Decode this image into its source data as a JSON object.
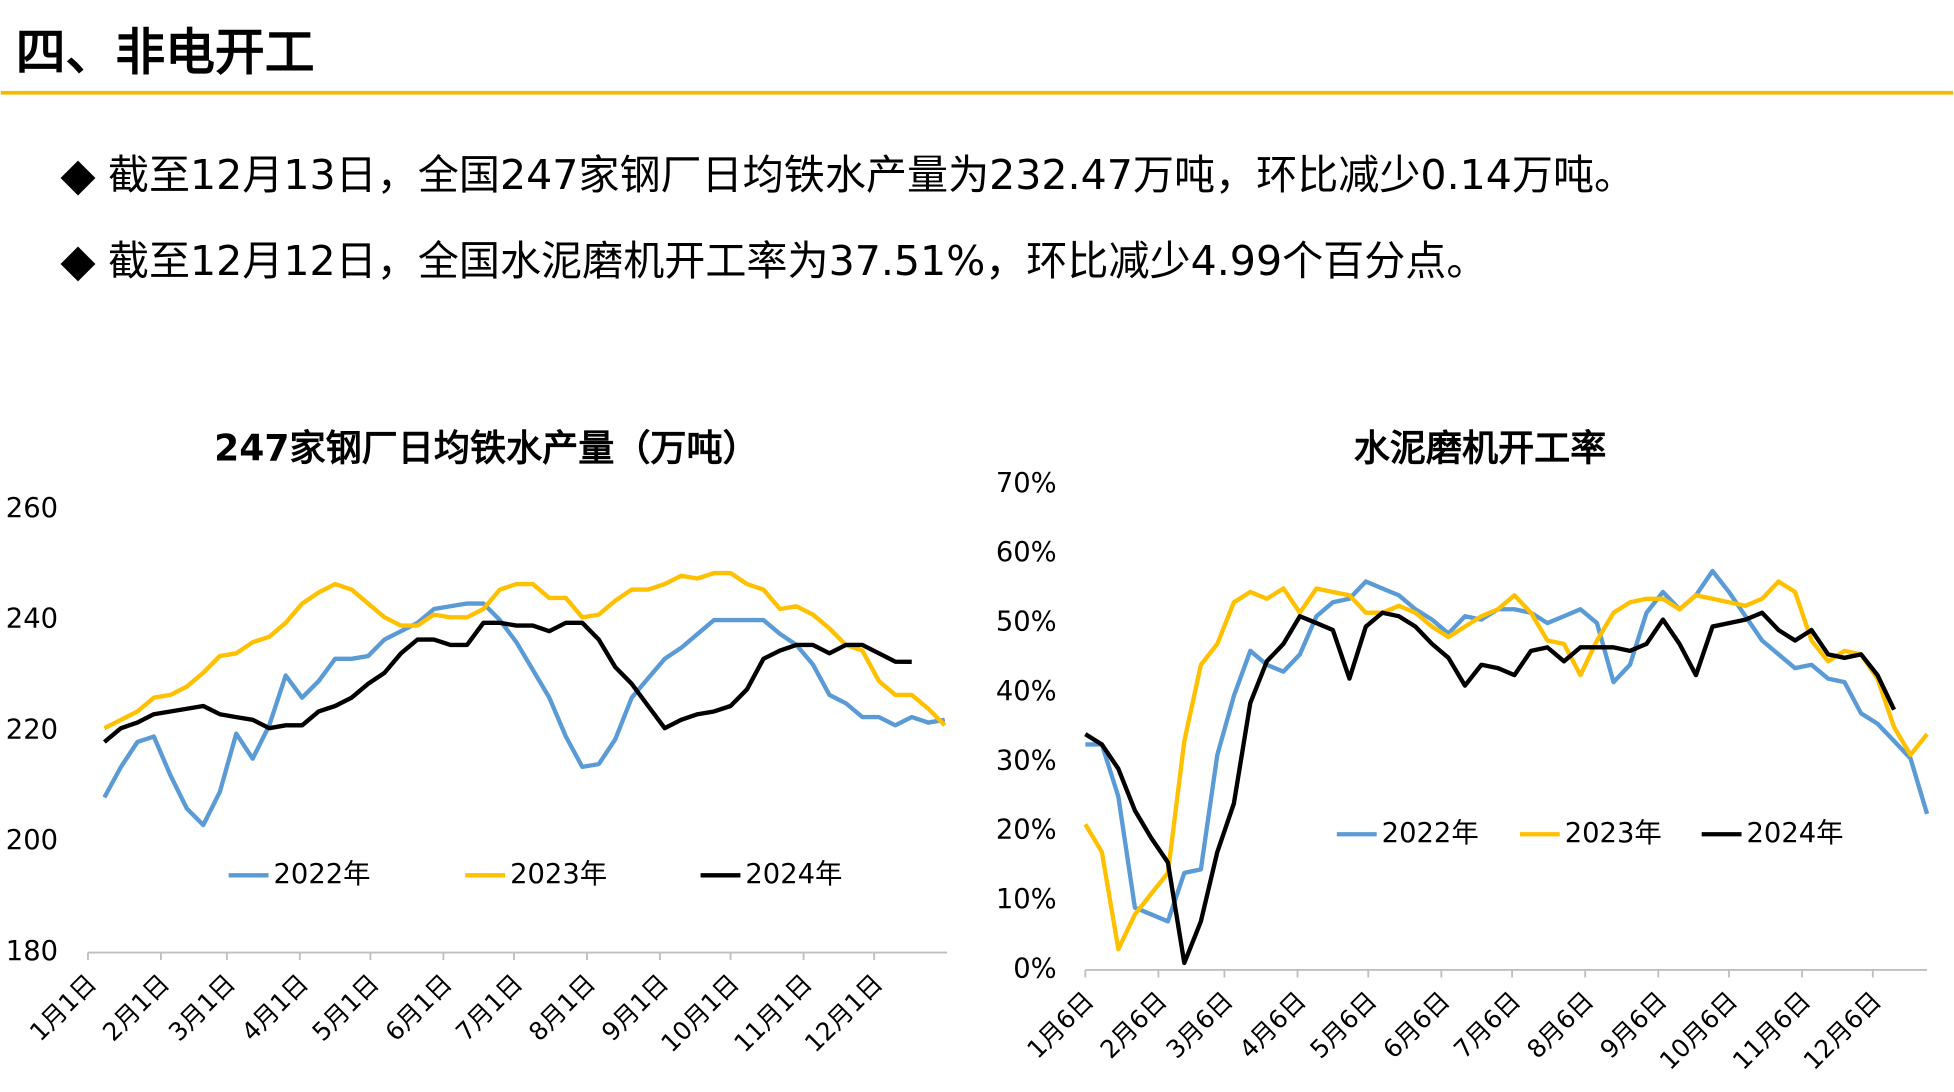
{
  "title": "四、非电开工",
  "bullets": [
    "截至12月13日，全国247家钢厂日均铁水产量为232.47万吨，环比减少0.14万吨。",
    "截至12月12日，全国水泥磨机开工率为37.51%，环比减少4.99个百分点。"
  ],
  "chart_data": [
    {
      "type": "line",
      "title": "247家钢厂日均铁水产量（万吨）",
      "x": [
        7,
        14,
        21,
        28,
        35,
        42,
        49,
        56,
        63,
        70,
        77,
        84,
        91,
        98,
        105,
        112,
        119,
        126,
        133,
        140,
        147,
        154,
        161,
        168,
        175,
        182,
        189,
        196,
        203,
        210,
        217,
        224,
        231,
        238,
        245,
        252,
        259,
        266,
        273,
        280,
        287,
        294,
        301,
        308,
        315,
        322,
        329,
        336,
        343,
        350,
        357,
        364
      ],
      "xlim": [
        0,
        365
      ],
      "xticks": [
        {
          "value": 0,
          "label": "1月1日"
        },
        {
          "value": 31,
          "label": "2月1日"
        },
        {
          "value": 59,
          "label": "3月1日"
        },
        {
          "value": 90,
          "label": "4月1日"
        },
        {
          "value": 120,
          "label": "5月1日"
        },
        {
          "value": 151,
          "label": "6月1日"
        },
        {
          "value": 181,
          "label": "7月1日"
        },
        {
          "value": 212,
          "label": "8月1日"
        },
        {
          "value": 243,
          "label": "9月1日"
        },
        {
          "value": 273,
          "label": "10月1日"
        },
        {
          "value": 304,
          "label": "11月1日"
        },
        {
          "value": 334,
          "label": "12月1日"
        }
      ],
      "ylim": [
        180,
        260
      ],
      "yticks": [
        180,
        200,
        220,
        240,
        260
      ],
      "series": [
        {
          "name": "2022年",
          "color": "#5b9bd5",
          "values": [
            208,
            213.5,
            218,
            219,
            212,
            206,
            203,
            209,
            219.5,
            215,
            221,
            230,
            226,
            229,
            233,
            233,
            233.5,
            236.5,
            238,
            239.5,
            242,
            242.5,
            243,
            243,
            240,
            236,
            231,
            226,
            219,
            213.5,
            214,
            218.5,
            226,
            229.5,
            233,
            235,
            237.5,
            240,
            240,
            240,
            240,
            237.5,
            235.5,
            232,
            226.5,
            225,
            222.5,
            222.5,
            221,
            222.5,
            221.5,
            222
          ]
        },
        {
          "name": "2023年",
          "color": "#ffc000",
          "values": [
            220.5,
            222,
            223.5,
            226,
            226.5,
            228,
            230.5,
            233.5,
            234,
            236,
            237,
            239.5,
            243,
            245,
            246.5,
            245.5,
            243,
            240.5,
            239,
            239,
            241,
            240.5,
            240.5,
            242,
            245.5,
            246.5,
            246.5,
            244,
            244,
            240.5,
            241,
            243.5,
            245.5,
            245.5,
            246.5,
            248,
            247.5,
            248.5,
            248.5,
            246.5,
            245.5,
            242,
            242.5,
            241,
            238.5,
            235.5,
            234.5,
            229,
            226.5,
            226.5,
            224,
            221
          ]
        },
        {
          "name": "2024年",
          "color": "#000000",
          "values": [
            218,
            220.5,
            221.5,
            223,
            223.5,
            224,
            224.5,
            223,
            222.5,
            222,
            220.5,
            221,
            221,
            223.5,
            224.5,
            226,
            228.5,
            230.5,
            234,
            236.5,
            236.5,
            235.5,
            235.5,
            239.5,
            239.5,
            239,
            239,
            238,
            239.5,
            239.5,
            236.5,
            231.5,
            228.5,
            224.5,
            220.5,
            222,
            223,
            223.5,
            224.5,
            227.5,
            233,
            234.5,
            235.5,
            235.5,
            234,
            235.5,
            235.5,
            234,
            232.5,
            232.47,
            null,
            null
          ]
        }
      ]
    },
    {
      "type": "line",
      "title": "水泥磨机开工率",
      "x": [
        5,
        12,
        19,
        26,
        33,
        40,
        47,
        54,
        61,
        68,
        75,
        82,
        89,
        96,
        103,
        110,
        117,
        124,
        131,
        138,
        145,
        152,
        159,
        166,
        173,
        180,
        187,
        194,
        201,
        208,
        215,
        222,
        229,
        236,
        243,
        250,
        257,
        264,
        271,
        278,
        285,
        292,
        299,
        306,
        313,
        320,
        327,
        334,
        341,
        348,
        355,
        362
      ],
      "xlim": [
        5,
        362
      ],
      "xticks": [
        {
          "value": 5,
          "label": "1月6日"
        },
        {
          "value": 36,
          "label": "2月6日"
        },
        {
          "value": 64,
          "label": "3月6日"
        },
        {
          "value": 95,
          "label": "4月6日"
        },
        {
          "value": 125,
          "label": "5月6日"
        },
        {
          "value": 156,
          "label": "6月6日"
        },
        {
          "value": 186,
          "label": "7月6日"
        },
        {
          "value": 217,
          "label": "8月6日"
        },
        {
          "value": 248,
          "label": "9月6日"
        },
        {
          "value": 278,
          "label": "10月6日"
        },
        {
          "value": 309,
          "label": "11月6日"
        },
        {
          "value": 339,
          "label": "12月6日"
        }
      ],
      "ylim": [
        0,
        70
      ],
      "yticks": [
        {
          "value": 0,
          "label": "0%"
        },
        {
          "value": 10,
          "label": "10%"
        },
        {
          "value": 20,
          "label": "20%"
        },
        {
          "value": 30,
          "label": "30%"
        },
        {
          "value": 40,
          "label": "40%"
        },
        {
          "value": 50,
          "label": "50%"
        },
        {
          "value": 60,
          "label": "60%"
        },
        {
          "value": 70,
          "label": "70%"
        }
      ],
      "series": [
        {
          "name": "2022年",
          "color": "#5b9bd5",
          "values": [
            32.5,
            32.5,
            25,
            9,
            8,
            7,
            14,
            14.5,
            31,
            39.5,
            46,
            44,
            43,
            45.5,
            51,
            53,
            53.5,
            56,
            55,
            54,
            52,
            50.5,
            48.5,
            51,
            50.5,
            52,
            52,
            51.5,
            50,
            51,
            52,
            50,
            41.5,
            44,
            51.5,
            54.5,
            52,
            54,
            57.5,
            54.5,
            51,
            47.5,
            45.5,
            43.5,
            44,
            42,
            41.5,
            37,
            35.5,
            33,
            30.5,
            22.5
          ]
        },
        {
          "name": "2023年",
          "color": "#ffc000",
          "values": [
            21,
            17,
            3,
            8,
            11,
            14,
            33,
            44,
            47,
            53,
            54.5,
            53.5,
            55,
            51.5,
            55,
            54.5,
            54,
            51.5,
            51.5,
            52.5,
            51.5,
            49.5,
            48,
            49.5,
            51,
            52,
            54,
            51.5,
            47.5,
            47,
            42.5,
            47.5,
            51.5,
            53,
            53.5,
            53.5,
            52,
            54,
            53.5,
            53,
            52.5,
            53.5,
            56,
            54.5,
            47.5,
            44.5,
            46,
            45.5,
            42,
            35,
            31,
            34
          ]
        },
        {
          "name": "2024年",
          "color": "#000000",
          "values": [
            34,
            32.5,
            29,
            23,
            19,
            15.5,
            1,
            7,
            17,
            24,
            38.5,
            44.5,
            47,
            51,
            50,
            49,
            42,
            49.5,
            51.5,
            51,
            49.5,
            47,
            45,
            41,
            44,
            43.5,
            42.5,
            46,
            46.5,
            44.5,
            46.5,
            46.5,
            46.5,
            46,
            47,
            50.5,
            47,
            42.5,
            49.5,
            50,
            50.5,
            51.5,
            49,
            47.5,
            49,
            45.5,
            45,
            45.5,
            42.5,
            37.51,
            null,
            null
          ]
        }
      ]
    }
  ]
}
